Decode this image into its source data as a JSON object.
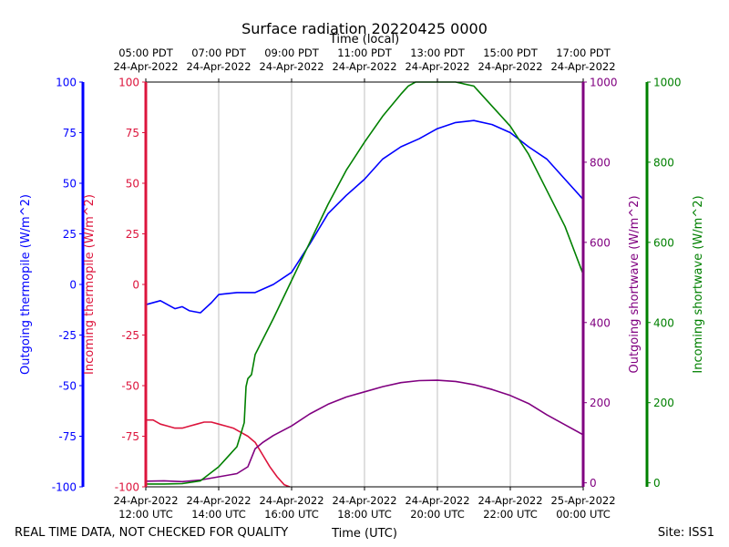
{
  "chart_data": {
    "type": "line",
    "title": "Surface radiation 20220425 0000",
    "top_axis_label": "Time (local)",
    "xlabel": "Time (UTC)",
    "footer_left": "REAL TIME DATA, NOT CHECKED FOR QUALITY",
    "footer_right": "Site: ISS1",
    "x_range_hours_utc": [
      12,
      24
    ],
    "grid": "vertical",
    "bottom_ticks": [
      {
        "hour": 12,
        "line1": "24-Apr-2022",
        "line2": "12:00 UTC"
      },
      {
        "hour": 14,
        "line1": "24-Apr-2022",
        "line2": "14:00 UTC"
      },
      {
        "hour": 16,
        "line1": "24-Apr-2022",
        "line2": "16:00 UTC"
      },
      {
        "hour": 18,
        "line1": "24-Apr-2022",
        "line2": "18:00 UTC"
      },
      {
        "hour": 20,
        "line1": "24-Apr-2022",
        "line2": "20:00 UTC"
      },
      {
        "hour": 22,
        "line1": "24-Apr-2022",
        "line2": "22:00 UTC"
      },
      {
        "hour": 24,
        "line1": "25-Apr-2022",
        "line2": "00:00 UTC"
      }
    ],
    "top_ticks": [
      {
        "hour": 12,
        "line1": "05:00 PDT",
        "line2": "24-Apr-2022"
      },
      {
        "hour": 14,
        "line1": "07:00 PDT",
        "line2": "24-Apr-2022"
      },
      {
        "hour": 16,
        "line1": "09:00 PDT",
        "line2": "24-Apr-2022"
      },
      {
        "hour": 18,
        "line1": "11:00 PDT",
        "line2": "24-Apr-2022"
      },
      {
        "hour": 20,
        "line1": "13:00 PDT",
        "line2": "24-Apr-2022"
      },
      {
        "hour": 22,
        "line1": "15:00 PDT",
        "line2": "24-Apr-2022"
      },
      {
        "hour": 24,
        "line1": "17:00 PDT",
        "line2": "24-Apr-2022"
      }
    ],
    "axes": [
      {
        "id": "out_thermo",
        "label": "Outgoing thermopile (W/m^2)",
        "color": "#0000ff",
        "side": "left-outer",
        "range": [
          -100,
          100
        ],
        "ticks": [
          -100,
          -75,
          -50,
          -25,
          0,
          25,
          50,
          75,
          100
        ]
      },
      {
        "id": "in_thermo",
        "label": "Incoming thermopile (W/m^2)",
        "color": "#dc143c",
        "side": "left-inner",
        "range": [
          -100,
          100
        ],
        "ticks": [
          -100,
          -75,
          -50,
          -25,
          0,
          25,
          50,
          75,
          100
        ]
      },
      {
        "id": "out_sw",
        "label": "Outgoing shortwave (W/m^2)",
        "color": "#800080",
        "side": "right-inner",
        "range": [
          -10,
          1000
        ],
        "ticks": [
          0,
          200,
          400,
          600,
          800,
          1000
        ]
      },
      {
        "id": "in_sw",
        "label": "Incoming shortwave (W/m^2)",
        "color": "#008000",
        "side": "right-outer",
        "range": [
          -10,
          1000
        ],
        "ticks": [
          0,
          200,
          400,
          600,
          800,
          1000
        ]
      }
    ],
    "series": [
      {
        "name": "Outgoing thermopile",
        "axis": "out_thermo",
        "color": "#0000ff",
        "x": [
          12.0,
          12.4,
          12.8,
          13.0,
          13.2,
          13.5,
          13.8,
          14.0,
          14.5,
          15.0,
          15.5,
          16.0,
          16.5,
          17.0,
          17.5,
          18.0,
          18.5,
          19.0,
          19.5,
          20.0,
          20.5,
          21.0,
          21.5,
          22.0,
          22.5,
          23.0,
          23.5,
          24.0
        ],
        "y": [
          -10,
          -8,
          -12,
          -11,
          -13,
          -14,
          -9,
          -5,
          -4,
          -4,
          0,
          6,
          20,
          35,
          44,
          52,
          62,
          68,
          72,
          77,
          80,
          81,
          79,
          75,
          68,
          62,
          52,
          42
        ]
      },
      {
        "name": "Incoming thermopile",
        "axis": "in_thermo",
        "color": "#dc143c",
        "x": [
          12.0,
          12.2,
          12.4,
          12.6,
          12.8,
          13.0,
          13.2,
          13.4,
          13.6,
          13.8,
          14.0,
          14.2,
          14.4,
          14.6,
          14.8,
          15.0,
          15.2,
          15.4,
          15.6,
          15.8,
          15.95
        ],
        "y": [
          -67,
          -67,
          -69,
          -70,
          -71,
          -71,
          -70,
          -69,
          -68,
          -68,
          -69,
          -70,
          -71,
          -73,
          -75,
          -78,
          -84,
          -90,
          -95,
          -99,
          -100
        ]
      },
      {
        "name": "Outgoing shortwave",
        "axis": "out_sw",
        "color": "#800080",
        "x": [
          12.0,
          12.5,
          13.0,
          13.5,
          14.0,
          14.5,
          14.8,
          15.0,
          15.2,
          15.5,
          16.0,
          16.5,
          17.0,
          17.5,
          18.0,
          18.5,
          19.0,
          19.5,
          20.0,
          20.5,
          21.0,
          21.5,
          22.0,
          22.5,
          23.0,
          23.5,
          24.0
        ],
        "y": [
          4,
          5,
          3,
          7,
          15,
          23,
          40,
          85,
          100,
          118,
          142,
          172,
          196,
          214,
          227,
          240,
          250,
          255,
          256,
          253,
          245,
          233,
          218,
          198,
          170,
          145,
          120
        ]
      },
      {
        "name": "Incoming shortwave",
        "axis": "in_sw",
        "color": "#008000",
        "x": [
          12.0,
          12.5,
          13.0,
          13.5,
          14.0,
          14.3,
          14.5,
          14.6,
          14.7,
          14.75,
          14.8,
          14.9,
          15.0,
          15.5,
          16.0,
          16.5,
          17.0,
          17.5,
          18.0,
          18.5,
          19.0,
          19.2,
          19.4,
          19.6,
          20.0,
          20.5,
          21.0,
          21.5,
          22.0,
          22.5,
          23.0,
          23.5,
          24.0
        ],
        "y": [
          -3,
          -3,
          -2,
          5,
          40,
          70,
          90,
          120,
          150,
          240,
          260,
          270,
          320,
          410,
          505,
          600,
          695,
          780,
          850,
          915,
          970,
          990,
          1000,
          1005,
          1010,
          1010,
          990,
          940,
          890,
          820,
          730,
          640,
          520
        ]
      }
    ]
  }
}
